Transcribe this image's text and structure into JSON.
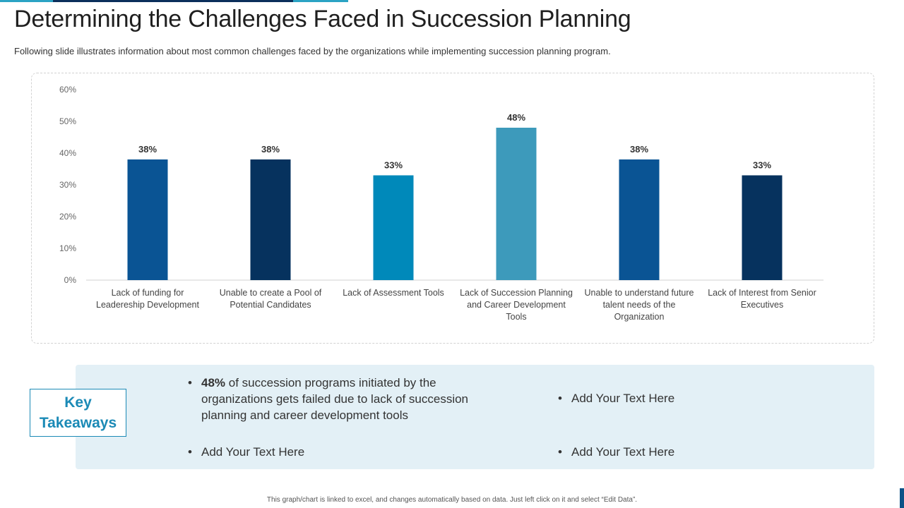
{
  "slide": {
    "title": "Determining the Challenges Faced in Succession Planning",
    "subtitle": "Following slide illustrates information about most common challenges faced by the organizations while implementing succession planning program.",
    "footer": "This graph/chart is linked to excel, and changes automatically based on data. Just left click on it and select “Edit Data”."
  },
  "colors": {
    "accent_dark": "#0b2f5b",
    "accent_teal": "#2ba3c4",
    "takeaway_bg": "#e3f0f6",
    "key_border": "#1b8ab6"
  },
  "chart_data": {
    "type": "bar",
    "title": "",
    "xlabel": "",
    "ylabel": "",
    "ylim": [
      0,
      60
    ],
    "yticks": [
      "0%",
      "10%",
      "20%",
      "30%",
      "40%",
      "50%",
      "60%"
    ],
    "grid": false,
    "legend": "none",
    "categories": [
      [
        "Lack of funding for",
        "Leadereship Development"
      ],
      [
        "Unable to create a Pool of",
        "Potential Candidates"
      ],
      [
        "Lack of Assessment Tools"
      ],
      [
        "Lack of Succession Planning",
        "and Career Development",
        "Tools"
      ],
      [
        "Unable to understand future",
        "talent needs of the",
        "Organization"
      ],
      [
        "Lack of Interest from Senior",
        "Executives"
      ]
    ],
    "values": [
      38,
      38,
      33,
      48,
      38,
      33
    ],
    "data_labels": [
      "38%",
      "38%",
      "33%",
      "48%",
      "38%",
      "33%"
    ],
    "bar_colors": [
      "#0a5494",
      "#06325e",
      "#0089ba",
      "#3d9abb",
      "#0a5494",
      "#06325e"
    ]
  },
  "takeaways": {
    "heading_line1": "Key",
    "heading_line2": "Takeaways",
    "bullet1_bold": "48%",
    "bullet1_rest": " of succession programs initiated by the organizations gets failed due to lack of succession planning and career development tools",
    "bullet2": "Add Your Text Here",
    "bullet3": "Add Your Text Here",
    "bullet4": "Add Your Text Here",
    "bullet_symbol": "•"
  }
}
